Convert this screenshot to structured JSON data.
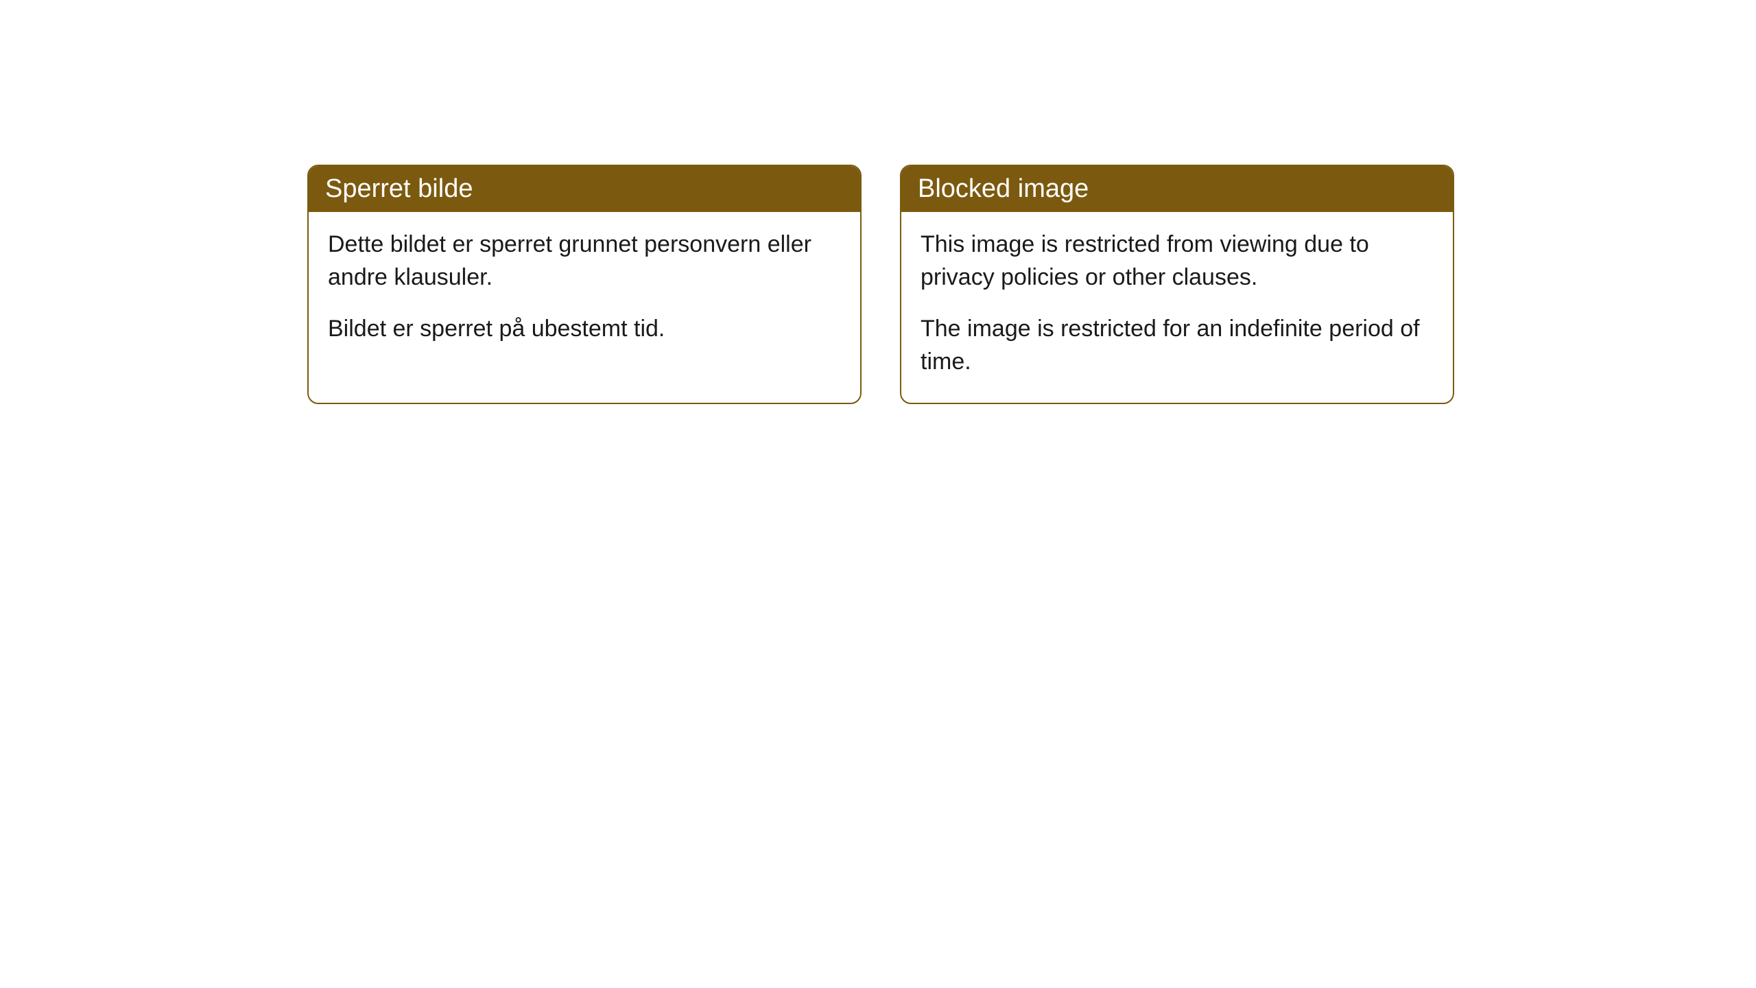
{
  "cards": [
    {
      "title": "Sperret bilde",
      "paragraph1": "Dette bildet er sperret grunnet personvern eller andre klausuler.",
      "paragraph2": "Bildet er sperret på ubestemt tid."
    },
    {
      "title": "Blocked image",
      "paragraph1": "This image is restricted from viewing due to privacy policies or other clauses.",
      "paragraph2": "The image is restricted for an indefinite period of time."
    }
  ],
  "style": {
    "header_background": "#7b5a10",
    "header_text_color": "#ffffff",
    "border_color": "#7b5a10",
    "body_background": "#ffffff",
    "body_text_color": "#1a1a1a",
    "border_radius": 16,
    "header_fontsize": 38,
    "body_fontsize": 34
  }
}
